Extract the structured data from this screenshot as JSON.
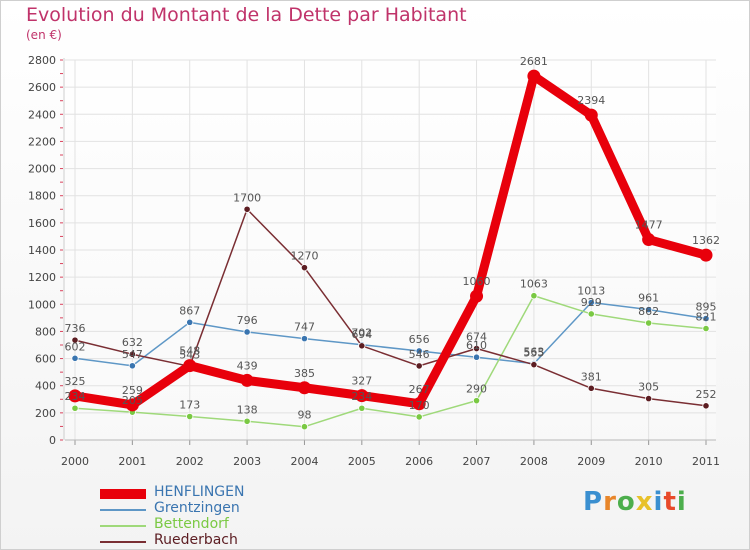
{
  "header": {
    "title": "Evolution du Montant de la Dette par Habitant",
    "subtitle": "(en €)"
  },
  "logo": {
    "text": "Proxiti"
  },
  "chart_data": {
    "type": "line",
    "title": "Evolution du Montant de la Dette par Habitant",
    "subtitle": "(en €)",
    "xlabel": "",
    "ylabel": "",
    "x": [
      "2000",
      "2001",
      "2002",
      "2003",
      "2004",
      "2005",
      "2006",
      "2007",
      "2008",
      "2009",
      "2010",
      "2011"
    ],
    "ylim": [
      0,
      2800
    ],
    "yticks": [
      0,
      200,
      400,
      600,
      800,
      1000,
      1200,
      1400,
      1600,
      1800,
      2000,
      2200,
      2400,
      2600,
      2800
    ],
    "grid": true,
    "legend_position": "bottom-left",
    "series": [
      {
        "name": "HENFLINGEN",
        "color": "#e8000b",
        "emphasis": true,
        "values": [
          325,
          259,
          548,
          439,
          385,
          327,
          267,
          1060,
          2681,
          2394,
          1477,
          1362
        ]
      },
      {
        "name": "Grentzingen",
        "color": "#5e97c6",
        "marker_color": "#3a75b0",
        "values": [
          602,
          547,
          867,
          796,
          747,
          702,
          656,
          610,
          563,
          1013,
          961,
          895
        ]
      },
      {
        "name": "Bettendorf",
        "color": "#9fd97a",
        "marker_color": "#7ac943",
        "values": [
          234,
          205,
          173,
          138,
          98,
          234,
          170,
          290,
          1063,
          929,
          862,
          821
        ]
      },
      {
        "name": "Ruederbach",
        "color": "#7a2e33",
        "marker_color": "#5c1d22",
        "values": [
          736,
          632,
          543,
          1700,
          1270,
          694,
          546,
          674,
          555,
          381,
          305,
          252
        ]
      }
    ]
  }
}
